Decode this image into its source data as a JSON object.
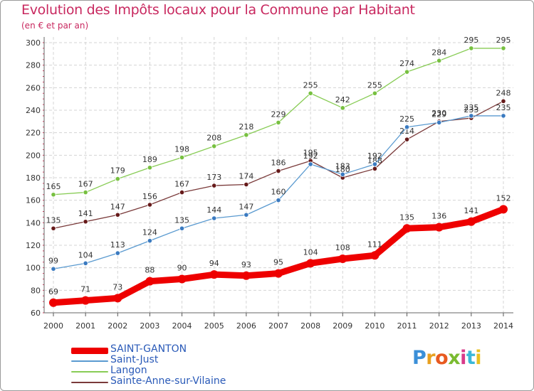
{
  "title": "Evolution des Impôts locaux pour la Commune par Habitant",
  "subtitle": "(en € et par an)",
  "logo": "Proxiti",
  "chart_data": {
    "type": "line",
    "title": "Evolution des Impôts locaux pour la Commune par Habitant",
    "subtitle": "(en € et par an)",
    "xlabel": "",
    "ylabel": "",
    "x": [
      2000,
      2001,
      2002,
      2003,
      2004,
      2005,
      2006,
      2007,
      2008,
      2009,
      2010,
      2011,
      2012,
      2013,
      2014
    ],
    "ylim": [
      60,
      300
    ],
    "yticks": [
      60,
      80,
      100,
      120,
      140,
      160,
      180,
      200,
      220,
      240,
      260,
      280,
      300
    ],
    "grid": true,
    "legend_position": "bottom-left",
    "series": [
      {
        "name": "Langon",
        "color": "#88cc55",
        "marker": "#77c040",
        "values": [
          165,
          167,
          179,
          189,
          198,
          208,
          218,
          229,
          255,
          242,
          255,
          274,
          284,
          295,
          295
        ]
      },
      {
        "name": "Sainte-Anne-sur-Vilaine",
        "color": "#7a3a3a",
        "marker": "#661a1a",
        "values": [
          135,
          141,
          147,
          156,
          167,
          173,
          174,
          186,
          195,
          180,
          188,
          214,
          230,
          233,
          248
        ]
      },
      {
        "name": "Saint-Just",
        "color": "#5a9ad0",
        "marker": "#3a7ac0",
        "values": [
          99,
          104,
          113,
          124,
          135,
          144,
          147,
          160,
          192,
          183,
          192,
          225,
          229,
          235,
          235
        ]
      },
      {
        "name": "SAINT-GANTON",
        "color": "#ee0000",
        "marker": "#ee0000",
        "values": [
          69,
          71,
          73,
          88,
          90,
          94,
          93,
          95,
          104,
          108,
          111,
          135,
          136,
          141,
          152
        ]
      }
    ]
  },
  "legend": [
    {
      "name": "SAINT-GANTON",
      "color": "#ee0000"
    },
    {
      "name": "Saint-Just",
      "color": "#5a9ad0"
    },
    {
      "name": "Langon",
      "color": "#88cc55"
    },
    {
      "name": "Sainte-Anne-sur-Vilaine",
      "color": "#7a3a3a"
    }
  ]
}
